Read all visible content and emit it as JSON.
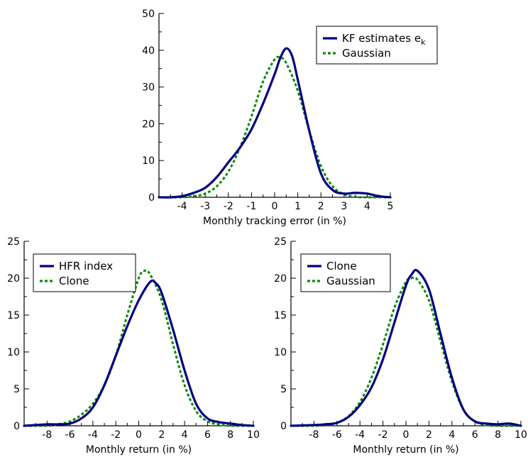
{
  "colors": {
    "series_a": "#000080",
    "series_b": "#0a8a0a",
    "axis": "#000000"
  },
  "chart_data": [
    {
      "type": "line",
      "id": "top",
      "xlabel": "Monthly tracking error (in %)",
      "ylabel": "",
      "xlim": [
        -5,
        5
      ],
      "ylim": [
        0,
        50
      ],
      "xticks": [
        -4,
        -3,
        -2,
        -1,
        0,
        1,
        2,
        3,
        4,
        5
      ],
      "yticks": [
        0,
        10,
        20,
        30,
        40,
        50
      ],
      "grid": false,
      "legend": {
        "placement": "top-right"
      },
      "series": [
        {
          "name": "KF estimates e",
          "name_subscript": "k",
          "style": "solid",
          "color": "#000080",
          "x": [
            -5.0,
            -4.5,
            -4.0,
            -3.5,
            -3.0,
            -2.5,
            -2.0,
            -1.5,
            -1.0,
            -0.5,
            0.0,
            0.25,
            0.5,
            0.75,
            1.0,
            1.5,
            2.0,
            2.5,
            3.0,
            3.5,
            4.0,
            4.5,
            5.0
          ],
          "y": [
            0.0,
            0.0,
            0.3,
            1.2,
            2.6,
            5.5,
            9.5,
            13.5,
            18.5,
            25.5,
            33.5,
            38.0,
            40.5,
            38.5,
            32.0,
            18.0,
            6.5,
            2.0,
            1.0,
            1.2,
            1.0,
            0.3,
            0.0
          ]
        },
        {
          "name": "Gaussian",
          "style": "dotted",
          "color": "#0a8a0a",
          "x": [
            -5.0,
            -4.0,
            -3.5,
            -3.0,
            -2.5,
            -2.0,
            -1.5,
            -1.0,
            -0.5,
            0.0,
            0.25,
            0.5,
            1.0,
            1.5,
            2.0,
            2.5,
            3.0,
            3.5,
            4.0,
            5.0
          ],
          "y": [
            0.0,
            0.0,
            0.3,
            1.0,
            3.0,
            7.0,
            13.5,
            22.0,
            31.5,
            37.5,
            38.0,
            36.5,
            29.0,
            18.0,
            8.5,
            3.0,
            0.8,
            0.1,
            0.0,
            0.0
          ]
        }
      ]
    },
    {
      "type": "line",
      "id": "bottom-left",
      "xlabel": "Monthly return (in %)",
      "ylabel": "",
      "xlim": [
        -10,
        10
      ],
      "ylim": [
        0,
        25
      ],
      "xticks": [
        -8,
        -6,
        -4,
        -2,
        0,
        2,
        4,
        6,
        8,
        10
      ],
      "yticks": [
        0,
        5,
        10,
        15,
        20,
        25
      ],
      "grid": false,
      "legend": {
        "placement": "top-left"
      },
      "series": [
        {
          "name": "HFR index",
          "style": "solid",
          "color": "#000080",
          "x": [
            -10,
            -9,
            -8,
            -7,
            -6,
            -5,
            -4,
            -3,
            -2,
            -1,
            0,
            1,
            1.5,
            2,
            3,
            4,
            5,
            6,
            7,
            8,
            9,
            10
          ],
          "y": [
            0.0,
            0.1,
            0.2,
            0.2,
            0.3,
            1.0,
            2.5,
            5.5,
            9.5,
            13.5,
            17.0,
            19.5,
            19.3,
            18.0,
            13.0,
            7.5,
            3.0,
            1.0,
            0.5,
            0.3,
            0.1,
            0.0
          ]
        },
        {
          "name": "Clone",
          "style": "dotted",
          "color": "#0a8a0a",
          "x": [
            -10,
            -8,
            -7,
            -6,
            -5,
            -4,
            -3,
            -2,
            -1,
            0,
            0.5,
            1,
            2,
            3,
            4,
            5,
            6,
            7,
            8,
            10
          ],
          "y": [
            0.0,
            0.0,
            0.2,
            0.6,
            1.5,
            3.0,
            5.5,
            9.5,
            15.0,
            20.0,
            21.0,
            20.5,
            17.0,
            11.0,
            5.5,
            2.0,
            0.6,
            0.2,
            0.0,
            0.0
          ]
        }
      ]
    },
    {
      "type": "line",
      "id": "bottom-right",
      "xlabel": "Monthly return (in %)",
      "ylabel": "",
      "xlim": [
        -10,
        10
      ],
      "ylim": [
        0,
        25
      ],
      "xticks": [
        -8,
        -6,
        -4,
        -2,
        0,
        2,
        4,
        6,
        8,
        10
      ],
      "yticks": [
        0,
        5,
        10,
        15,
        20,
        25
      ],
      "grid": false,
      "legend": {
        "placement": "top-left"
      },
      "series": [
        {
          "name": "Clone",
          "style": "solid",
          "color": "#000080",
          "x": [
            -10,
            -8,
            -7,
            -6,
            -5,
            -4,
            -3,
            -2,
            -1,
            0,
            0.5,
            1,
            2,
            3,
            4,
            5,
            6,
            7,
            8,
            9,
            10
          ],
          "y": [
            0.0,
            0.1,
            0.2,
            0.4,
            1.2,
            2.8,
            5.2,
            9.0,
            14.0,
            19.0,
            20.5,
            21.0,
            18.5,
            12.5,
            6.5,
            2.2,
            0.6,
            0.3,
            0.2,
            0.3,
            0.0
          ]
        },
        {
          "name": "Gaussian",
          "style": "dotted",
          "color": "#0a8a0a",
          "x": [
            -10,
            -8,
            -7,
            -6,
            -5,
            -4,
            -3,
            -2,
            -1,
            0,
            0.5,
            1,
            2,
            3,
            4,
            5,
            6,
            7,
            8,
            10
          ],
          "y": [
            0.0,
            0.0,
            0.1,
            0.4,
            1.3,
            3.2,
            6.5,
            11.0,
            16.0,
            19.5,
            20.0,
            19.8,
            17.0,
            11.5,
            6.0,
            2.2,
            0.6,
            0.1,
            0.0,
            0.0
          ]
        }
      ]
    }
  ]
}
